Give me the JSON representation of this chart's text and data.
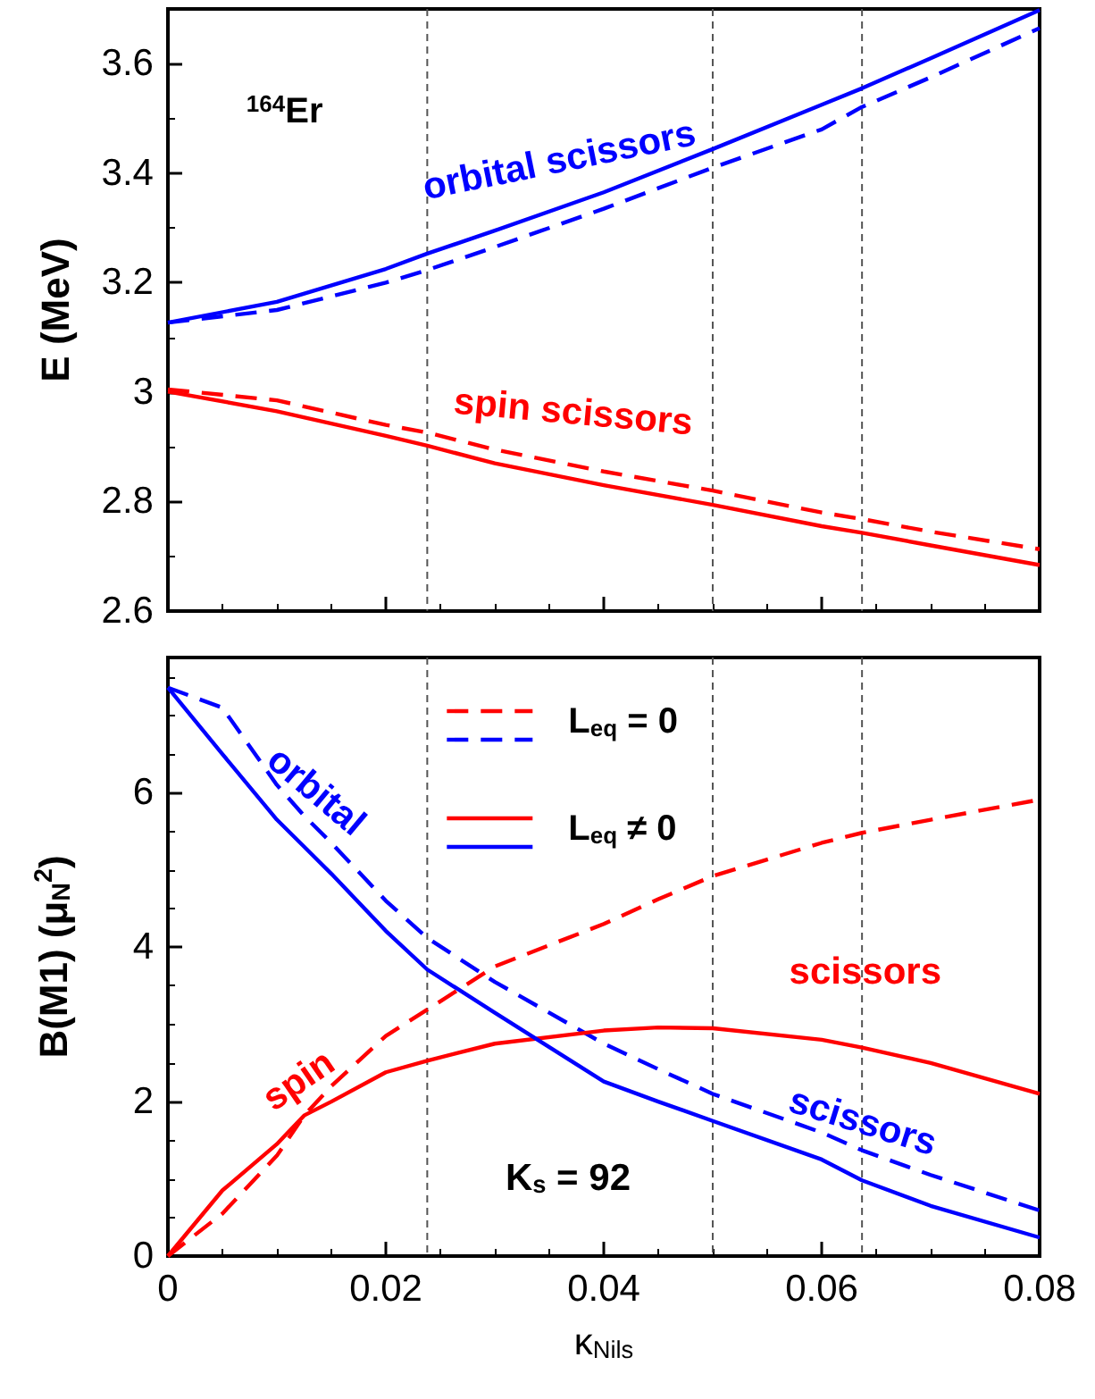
{
  "chart_data": [
    {
      "type": "line",
      "ylabel": "E (MeV)",
      "xlim": [
        0,
        0.08
      ],
      "xticks": [
        0,
        0.02,
        0.04,
        0.06,
        0.08
      ],
      "ylim": [
        2.6,
        3.7
      ],
      "yticks": [
        2.6,
        2.8,
        3.0,
        3.2,
        3.4,
        3.6
      ],
      "tick_labels": "y",
      "grid": false,
      "legend": false,
      "marker": "none",
      "x": [
        0,
        0.01,
        0.02,
        0.0238,
        0.03,
        0.04,
        0.05,
        0.06,
        0.0637,
        0.07,
        0.08
      ],
      "series": [
        {
          "color": "#ff0000",
          "line_style": "dashed",
          "values": [
            3.005,
            2.985,
            2.94,
            2.926,
            2.895,
            2.855,
            2.82,
            2.78,
            2.768,
            2.745,
            2.713
          ]
        },
        {
          "color": "#0000ff",
          "line_style": "dashed",
          "values": [
            3.127,
            3.15,
            3.2,
            3.223,
            3.265,
            3.335,
            3.41,
            3.48,
            3.521,
            3.575,
            3.665
          ]
        },
        {
          "color": "#ff0000",
          "line_style": "solid",
          "values": [
            3.001,
            2.965,
            2.92,
            2.902,
            2.87,
            2.83,
            2.794,
            2.755,
            2.743,
            2.72,
            2.684
          ]
        },
        {
          "color": "#0000ff",
          "line_style": "solid",
          "values": [
            3.127,
            3.165,
            3.225,
            3.253,
            3.295,
            3.365,
            3.444,
            3.525,
            3.555,
            3.61,
            3.698
          ]
        }
      ],
      "ref_lines": [
        {
          "axis": "x",
          "value": 0.0238,
          "color": "#555555",
          "line_style": "dashed"
        },
        {
          "axis": "x",
          "value": 0.05,
          "color": "#555555",
          "line_style": "dashed"
        },
        {
          "axis": "x",
          "value": 0.0637,
          "color": "#555555",
          "line_style": "dashed"
        }
      ],
      "annotations": [
        "$^{164}$Er",
        "orbital scissors",
        "spin scissors"
      ]
    },
    {
      "type": "line",
      "xlabel": "κ$_{Nils}$",
      "ylabel": "B(M1) (μ$_{N}$$^{2}$)",
      "xlim": [
        0,
        0.08
      ],
      "xticks": [
        0,
        0.02,
        0.04,
        0.06,
        0.08
      ],
      "ylim": [
        0,
        7.75
      ],
      "yticks": [
        0,
        2,
        4,
        6
      ],
      "grid": false,
      "legend": "top",
      "marker": "none",
      "x": [
        0,
        0.005,
        0.01,
        0.0125,
        0.015,
        0.02,
        0.0238,
        0.03,
        0.04,
        0.045,
        0.05,
        0.06,
        0.0637,
        0.07,
        0.08
      ],
      "series": [
        {
          "name": "L$_{eq}$ = 0",
          "color": "#ff0000",
          "line_style": "dashed",
          "values": [
            0,
            0.55,
            1.3,
            1.82,
            2.2,
            2.85,
            3.19,
            3.75,
            4.3,
            4.62,
            4.92,
            5.35,
            5.48,
            5.65,
            5.91
          ]
        },
        {
          "color": "#0000ff",
          "line_style": "dashed",
          "values": [
            7.36,
            7.1,
            6.1,
            5.7,
            5.35,
            4.6,
            4.12,
            3.55,
            2.75,
            2.42,
            2.1,
            1.6,
            1.37,
            1.05,
            0.59
          ]
        },
        {
          "name": "L$_{eq}$ ≠ 0",
          "color": "#ff0000",
          "line_style": "solid",
          "values": [
            0,
            0.85,
            1.45,
            1.82,
            2.0,
            2.38,
            2.53,
            2.75,
            2.92,
            2.96,
            2.95,
            2.8,
            2.7,
            2.5,
            2.1
          ]
        },
        {
          "color": "#0000ff",
          "line_style": "solid",
          "values": [
            7.36,
            6.5,
            5.65,
            5.3,
            4.95,
            4.21,
            3.71,
            3.15,
            2.26,
            2.0,
            1.75,
            1.25,
            0.98,
            0.65,
            0.24
          ]
        }
      ],
      "ref_lines": [
        {
          "axis": "x",
          "value": 0.0238,
          "color": "#555555",
          "line_style": "dashed"
        },
        {
          "axis": "x",
          "value": 0.05,
          "color": "#555555",
          "line_style": "dashed"
        },
        {
          "axis": "x",
          "value": 0.0637,
          "color": "#555555",
          "line_style": "dashed"
        }
      ],
      "annotations": [
        "K$_{s}$ = 92",
        "orbital",
        "spin",
        "scissors",
        "scissors"
      ]
    }
  ]
}
